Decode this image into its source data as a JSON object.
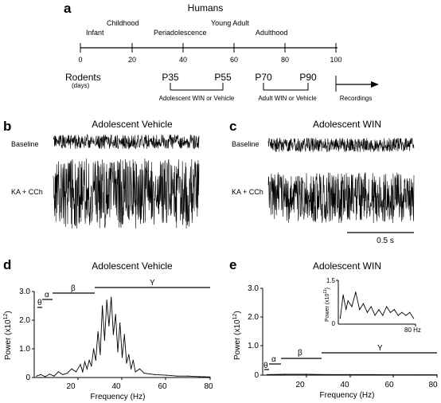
{
  "panels": {
    "a": "a",
    "b": "b",
    "c": "c",
    "d": "d",
    "e": "e"
  },
  "timeline": {
    "species_humans": "Humans",
    "stages": [
      "Infant",
      "Childhood",
      "Periadolescence",
      "Young Adult",
      "Adulthood"
    ],
    "ticks": [
      "0",
      "20",
      "40",
      "60",
      "80",
      "100"
    ],
    "rodents_label": "Rodents",
    "days_label": "(days)",
    "p35": "P35",
    "p55": "P55",
    "p70": "P70",
    "p90": "P90",
    "adolescent_treatment": "Adolescent WIN or Vehicle",
    "adult_treatment": "Adult WIN or Vehicle",
    "recordings": "Recordings"
  },
  "traces": {
    "b_title": "Adolescent Vehicle",
    "c_title": "Adolescent WIN",
    "baseline_label": "Baseline",
    "kacch_label": "KA + CCh",
    "scale_bar": "0.5 s"
  },
  "spectra": {
    "d_title": "Adolescent Vehicle",
    "e_title": "Adolescent WIN",
    "ylabel_main": "Power (x10",
    "ylabel_exp": "12",
    "ylabel_close": ")",
    "inset_ylabel_main": "Power (x10",
    "inset_ylabel_exp": "11",
    "inset_ylabel_close": ")",
    "xlabel": "Frequency (Hz)",
    "xticks": [
      "20",
      "40",
      "60",
      "80"
    ],
    "yticks": [
      "0",
      "1.0",
      "2.0",
      "3.0"
    ],
    "inset_yticks": [
      "0",
      "1.5"
    ],
    "inset_xtick": "80 Hz",
    "bands": {
      "theta": "θ",
      "alpha": "α",
      "beta": "β",
      "gamma": "Υ"
    }
  },
  "chart_data": [
    {
      "type": "line",
      "panel": "d",
      "title": "Adolescent Vehicle",
      "xlabel": "Frequency (Hz)",
      "ylabel": "Power (x10^12)",
      "xlim": [
        0,
        80
      ],
      "ylim": [
        0,
        3.0
      ],
      "x": [
        1,
        3,
        5,
        7,
        9,
        11,
        13,
        15,
        17,
        19,
        21,
        22,
        23,
        24,
        25,
        26,
        27,
        28,
        29,
        30,
        31,
        32,
        33,
        34,
        35,
        36,
        37,
        38,
        39,
        40,
        41,
        42,
        43,
        44,
        45,
        46,
        48,
        50,
        55,
        60,
        65,
        70,
        75,
        80
      ],
      "y": [
        0.05,
        0.1,
        0.03,
        0.12,
        0.05,
        0.2,
        0.1,
        0.15,
        0.3,
        0.2,
        0.45,
        0.2,
        0.55,
        0.3,
        0.6,
        0.4,
        1.0,
        0.6,
        1.6,
        0.8,
        2.5,
        1.3,
        2.7,
        1.8,
        2.8,
        1.5,
        2.2,
        0.9,
        1.9,
        0.7,
        1.5,
        0.5,
        0.8,
        0.3,
        0.6,
        0.2,
        0.3,
        0.15,
        0.1,
        0.08,
        0.05,
        0.05,
        0.03,
        0.02
      ],
      "band_labels": [
        "θ",
        "α",
        "β",
        "Υ"
      ]
    },
    {
      "type": "line",
      "panel": "e",
      "title": "Adolescent WIN",
      "xlabel": "Frequency (Hz)",
      "ylabel": "Power (x10^12)",
      "xlim": [
        0,
        80
      ],
      "ylim": [
        0,
        3.0
      ],
      "x": [
        2,
        10,
        20,
        30,
        40,
        50,
        60,
        70,
        80
      ],
      "y": [
        0.02,
        0.03,
        0.03,
        0.02,
        0.02,
        0.02,
        0.01,
        0.01,
        0.01
      ],
      "band_labels": [
        "θ",
        "α",
        "β",
        "Υ"
      ]
    },
    {
      "type": "line",
      "panel": "e-inset",
      "ylabel": "Power (x10^11)",
      "xlim": [
        0,
        80
      ],
      "ylim": [
        0,
        1.5
      ],
      "x": [
        2,
        5,
        8,
        10,
        14,
        18,
        22,
        26,
        30,
        34,
        38,
        42,
        46,
        50,
        54,
        58,
        62,
        66,
        70,
        74,
        78
      ],
      "y": [
        0.2,
        1.0,
        0.5,
        0.8,
        0.6,
        1.1,
        0.5,
        0.7,
        0.4,
        0.6,
        0.3,
        0.5,
        0.3,
        0.6,
        0.4,
        0.5,
        0.3,
        0.4,
        0.3,
        0.4,
        0.2
      ]
    }
  ]
}
